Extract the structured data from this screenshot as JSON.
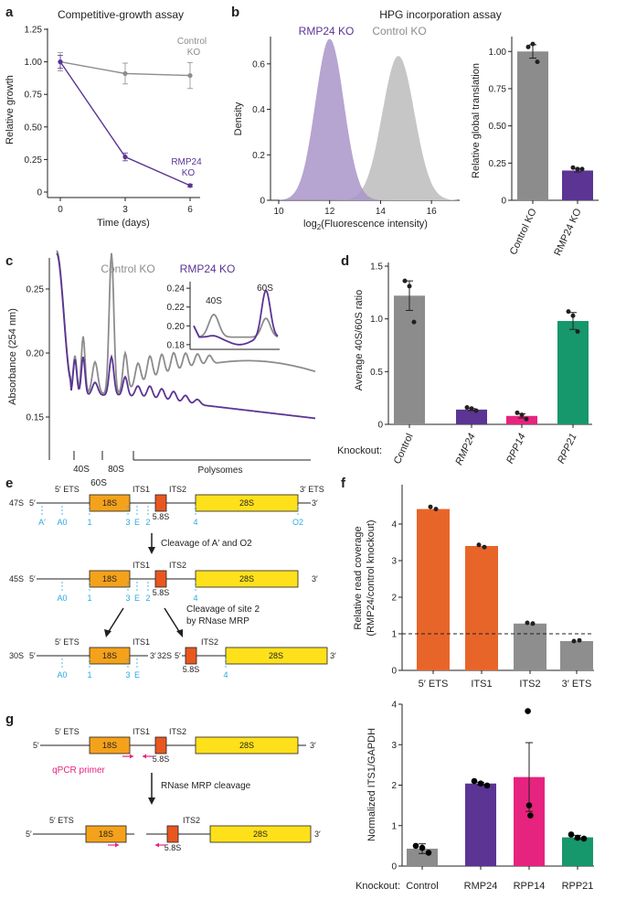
{
  "colors": {
    "control": "#8c8c8c",
    "control_fill": "#c6c6c6",
    "rmp24": "#5b3494",
    "rmp24_fill": "#a994c9",
    "rpp14": "#e6237f",
    "rpp21": "#16976c",
    "ets_orange": "#e8652a",
    "its2_gray": "#8e8e8e",
    "s18": "#f4a21b",
    "s28": "#fee11b",
    "s58": "#e8571f",
    "site_blue": "#29a9e0",
    "primer": "#e6237f"
  },
  "panels": {
    "a": "a",
    "b": "b",
    "c": "c",
    "d": "d",
    "e": "e",
    "f": "f",
    "g": "g"
  },
  "panel_a": {
    "title": "Competitive-growth assay",
    "xlabel": "Time (days)",
    "ylabel": "Relative growth",
    "xticks": [
      "0",
      "3",
      "6"
    ],
    "yticks": [
      "0",
      "0.25",
      "0.50",
      "0.75",
      "1.00",
      "1.25"
    ],
    "label_control_1": "Control",
    "label_control_2": "KO",
    "label_rmp24_1": "RMP24",
    "label_rmp24_2": "KO"
  },
  "panel_b": {
    "title": "HPG incorporation assay",
    "label_rmp24": "RMP24 KO",
    "label_control": "Control KO",
    "xlabel_pre": "log",
    "xlabel_sub": "2",
    "xlabel_post": "(Fluorescence intensity)",
    "ylabel": "Density",
    "xticks": [
      "10",
      "12",
      "14",
      "16"
    ],
    "yticks": [
      "0",
      "0.2",
      "0.4",
      "0.6"
    ],
    "bar_ylabel": "Relative global translation",
    "bar_yticks": [
      "0",
      "0.25",
      "0.50",
      "0.75",
      "1.00"
    ],
    "bar_categories": [
      "Control KO",
      "RMP24 KO"
    ]
  },
  "panel_c": {
    "label_control": "Control KO",
    "label_rmp24": "RMP24 KO",
    "ylabel": "Absorbance (254 nm)",
    "yticks": [
      "0.15",
      "0.20",
      "0.25"
    ],
    "inset_yticks": [
      "0.18",
      "0.20",
      "0.22",
      "0.24"
    ],
    "inset_40s": "40S",
    "inset_60s": "60S",
    "x_40s": "40S",
    "x_60s": "60S",
    "x_80s": "80S",
    "x_polysomes": "Polysomes"
  },
  "panel_d": {
    "ylabel": "Average 40S/60S ratio",
    "yticks": [
      "0",
      "0.5",
      "1.0",
      "1.5"
    ],
    "knockout_label": "Knockout:",
    "categories": [
      "Control",
      "RMP24",
      "RPP14",
      "RPP21"
    ]
  },
  "panel_e": {
    "r1_name": "47S",
    "r2_name": "45S",
    "r3a_name": "30S",
    "r3b_name": "32S",
    "five": "5′",
    "three": "3′",
    "ets5": "5′ ETS",
    "ets3": "3′ ETS",
    "its1": "ITS1",
    "its2": "ITS2",
    "s18": "18S",
    "s58": "5.8S",
    "s28": "28S",
    "site_A1": "A′",
    "site_A0": "A0",
    "site_1": "1",
    "site_3": "3",
    "site_E": "E",
    "site_2": "2",
    "site_4": "4",
    "site_O2": "O2",
    "step1": "Cleavage of A′ and O2",
    "step2_1": "Cleavage of site 2",
    "step2_2": "by RNase MRP"
  },
  "panel_f": {
    "ylabel_1": "Relative read coverage",
    "ylabel_2": "(RMP24/control knockout)",
    "yticks": [
      "0",
      "1",
      "2",
      "3",
      "4"
    ],
    "categories": [
      "5′ ETS",
      "ITS1",
      "ITS2",
      "3′ ETS"
    ],
    "lower_ylabel": "Normalized ITS1/GAPDH",
    "lower_yticks": [
      "0",
      "1",
      "2",
      "3",
      "4"
    ],
    "lower_knockout": "Knockout:",
    "lower_categories": [
      "Control",
      "RMP24",
      "RPP14",
      "RPP21"
    ]
  },
  "panel_g": {
    "five": "5′",
    "three": "3′",
    "ets5": "5′ ETS",
    "its1": "ITS1",
    "its2": "ITS2",
    "s18": "18S",
    "s58": "5.8S",
    "s28": "28S",
    "primer": "qPCR primer",
    "step": "RNase MRP cleavage"
  },
  "chart_data": [
    {
      "panel": "a",
      "type": "line",
      "title": "Competitive-growth assay",
      "xlabel": "Time (days)",
      "ylabel": "Relative growth",
      "xlim": [
        0,
        6
      ],
      "ylim": [
        0,
        1.25
      ],
      "series": [
        {
          "name": "Control KO",
          "x": [
            0,
            3,
            6
          ],
          "y": [
            1.0,
            0.91,
            0.895
          ],
          "err": [
            0.07,
            0.08,
            0.1
          ]
        },
        {
          "name": "RMP24 KO",
          "x": [
            0,
            3,
            6
          ],
          "y": [
            1.0,
            0.27,
            0.05
          ],
          "err": [
            0.05,
            0.03,
            0.01
          ]
        }
      ]
    },
    {
      "panel": "b-left",
      "type": "area",
      "title": "HPG incorporation assay",
      "xlabel": "log2(Fluorescence intensity)",
      "ylabel": "Density",
      "xlim": [
        10,
        17
      ],
      "ylim": [
        0,
        0.72
      ],
      "series": [
        {
          "name": "RMP24 KO",
          "peak_x": 12.0,
          "peak_y": 0.71,
          "sd": 0.56
        },
        {
          "name": "Control KO",
          "peak_x": 14.7,
          "peak_y": 0.635,
          "sd": 0.63
        }
      ]
    },
    {
      "panel": "b-right",
      "type": "bar",
      "ylabel": "Relative global translation",
      "categories": [
        "Control KO",
        "RMP24 KO"
      ],
      "values": [
        1.0,
        0.2
      ],
      "err": [
        0.045,
        0.01
      ],
      "points": [
        [
          1.03,
          1.05,
          0.93
        ],
        [
          0.22,
          0.21,
          0.21
        ]
      ],
      "ylim": [
        0,
        1.1
      ]
    },
    {
      "panel": "d",
      "type": "bar",
      "ylabel": "Average 40S/60S ratio",
      "categories": [
        "Control",
        "RMP24",
        "RPP14",
        "RPP21"
      ],
      "values": [
        1.22,
        0.14,
        0.08,
        0.98
      ],
      "err": [
        0.14,
        0.01,
        0.02,
        0.08
      ],
      "points": [
        [
          1.36,
          1.31,
          0.97
        ],
        [
          0.16,
          0.15,
          0.13
        ],
        [
          0.11,
          0.09,
          0.05
        ],
        [
          1.07,
          1.03,
          0.88
        ]
      ],
      "ylim": [
        0,
        1.5
      ]
    },
    {
      "panel": "f-top",
      "type": "bar",
      "ylabel": "Relative read coverage (RMP24/control knockout)",
      "categories": [
        "5′ ETS",
        "ITS1",
        "ITS2",
        "3′ ETS"
      ],
      "values": [
        4.41,
        3.4,
        1.28,
        0.8
      ],
      "reference_line": 1,
      "points": [
        [
          4.47,
          4.41
        ],
        [
          3.43,
          3.37
        ],
        [
          1.3,
          1.28
        ],
        [
          0.8,
          0.82
        ]
      ],
      "ylim": [
        0,
        5
      ]
    },
    {
      "panel": "f-bottom",
      "type": "bar",
      "ylabel": "Normalized ITS1/GAPDH",
      "categories": [
        "Control",
        "RMP24",
        "RPP14",
        "RPP21"
      ],
      "values": [
        0.43,
        2.04,
        2.2,
        0.71
      ],
      "err": [
        0.12,
        0.03,
        0.85,
        0.05
      ],
      "points": [
        [
          0.5,
          0.45,
          0.33
        ],
        [
          2.1,
          2.04,
          1.99
        ],
        [
          3.83,
          1.5,
          1.25
        ],
        [
          0.78,
          0.7,
          0.68
        ]
      ],
      "ylim": [
        0,
        4
      ]
    }
  ]
}
